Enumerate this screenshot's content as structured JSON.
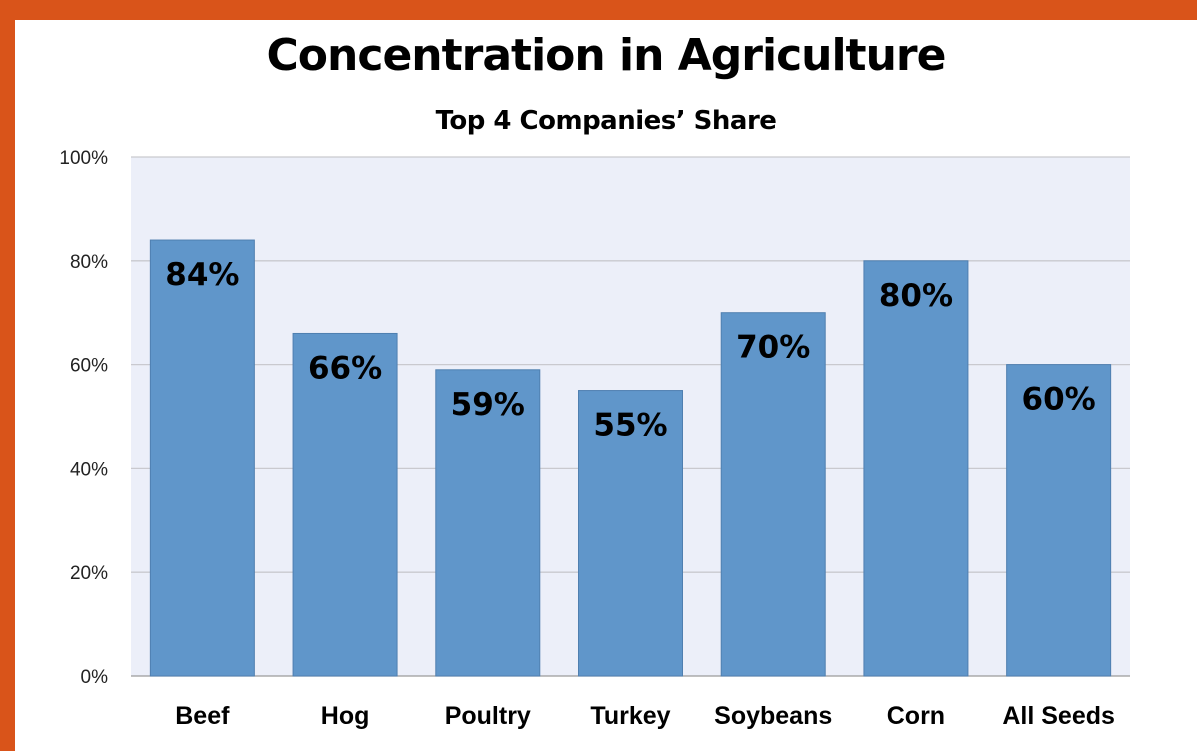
{
  "chart_data": {
    "type": "bar",
    "title": "Concentration in Agriculture",
    "subtitle": "Top 4 Companies’ Share",
    "xlabel": "",
    "ylabel": "",
    "categories": [
      "Beef",
      "Hog",
      "Poultry",
      "Turkey",
      "Soybeans",
      "Corn",
      "All Seeds"
    ],
    "values": [
      84,
      66,
      59,
      55,
      70,
      80,
      60
    ],
    "data_labels": [
      "84%",
      "66%",
      "59%",
      "55%",
      "70%",
      "80%",
      "60%"
    ],
    "ylim": [
      0,
      100
    ],
    "yticks": [
      0,
      20,
      40,
      60,
      80,
      100
    ],
    "ytick_labels": [
      "0%",
      "20%",
      "40%",
      "60%",
      "80%",
      "100%"
    ],
    "grid": true,
    "colors": {
      "bar": "#6096ca",
      "bar_border": "#4f7fb0",
      "plot_background": "#eceff9",
      "frame": "#d9541a"
    }
  }
}
